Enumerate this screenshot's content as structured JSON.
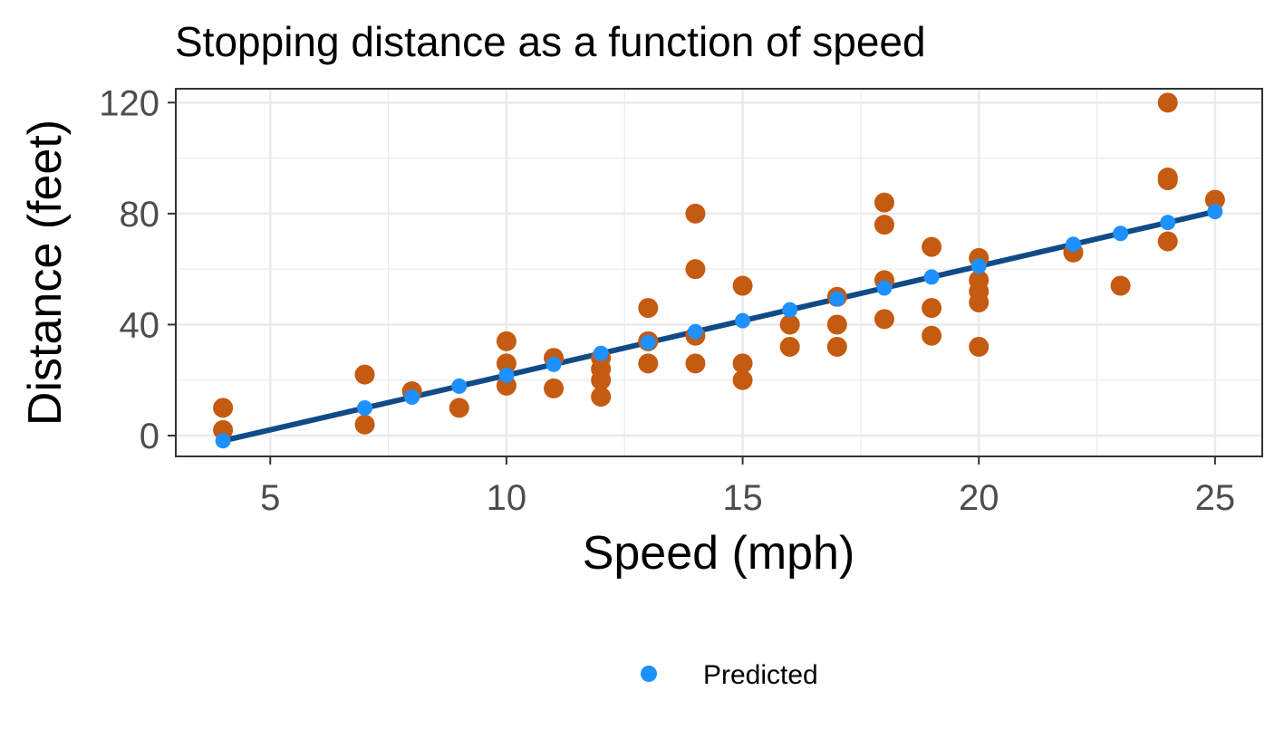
{
  "chart_data": {
    "type": "scatter",
    "title": "Stopping distance as a function of speed",
    "xlabel": "Speed (mph)",
    "ylabel": "Distance (feet)",
    "xlim": [
      3,
      26
    ],
    "ylim": [
      -7.5,
      125
    ],
    "x_ticks": [
      5,
      10,
      15,
      20,
      25
    ],
    "y_ticks": [
      0,
      40,
      80,
      120
    ],
    "grid": true,
    "legend_position": "bottom",
    "colors": {
      "observed": "#C55A11",
      "predicted": "#1E90FF",
      "fit_line": "#114B87",
      "grid": "#EBEBEB",
      "panel_border": "#333333"
    },
    "series": [
      {
        "kind": "observed",
        "points": [
          [
            4,
            2
          ],
          [
            4,
            10
          ],
          [
            7,
            4
          ],
          [
            7,
            22
          ],
          [
            8,
            16
          ],
          [
            9,
            10
          ],
          [
            10,
            18
          ],
          [
            10,
            26
          ],
          [
            10,
            34
          ],
          [
            11,
            17
          ],
          [
            11,
            28
          ],
          [
            12,
            14
          ],
          [
            12,
            20
          ],
          [
            12,
            24
          ],
          [
            12,
            28
          ],
          [
            13,
            26
          ],
          [
            13,
            34
          ],
          [
            13,
            34
          ],
          [
            13,
            46
          ],
          [
            14,
            26
          ],
          [
            14,
            36
          ],
          [
            14,
            60
          ],
          [
            14,
            80
          ],
          [
            15,
            20
          ],
          [
            15,
            26
          ],
          [
            15,
            54
          ],
          [
            16,
            32
          ],
          [
            16,
            40
          ],
          [
            17,
            32
          ],
          [
            17,
            40
          ],
          [
            17,
            50
          ],
          [
            18,
            42
          ],
          [
            18,
            56
          ],
          [
            18,
            76
          ],
          [
            18,
            84
          ],
          [
            19,
            36
          ],
          [
            19,
            46
          ],
          [
            19,
            68
          ],
          [
            20,
            32
          ],
          [
            20,
            48
          ],
          [
            20,
            52
          ],
          [
            20,
            56
          ],
          [
            20,
            64
          ],
          [
            22,
            66
          ],
          [
            23,
            54
          ],
          [
            24,
            70
          ],
          [
            24,
            92
          ],
          [
            24,
            93
          ],
          [
            24,
            120
          ],
          [
            25,
            85
          ]
        ]
      },
      {
        "name": "Predicted",
        "kind": "predicted",
        "points": [
          [
            4,
            -1.85
          ],
          [
            7,
            9.95
          ],
          [
            8,
            13.88
          ],
          [
            9,
            17.82
          ],
          [
            10,
            21.74
          ],
          [
            11,
            25.68
          ],
          [
            12,
            29.61
          ],
          [
            13,
            33.54
          ],
          [
            14,
            37.47
          ],
          [
            15,
            41.41
          ],
          [
            16,
            45.34
          ],
          [
            17,
            49.27
          ],
          [
            18,
            53.2
          ],
          [
            19,
            57.14
          ],
          [
            20,
            61.07
          ],
          [
            22,
            68.93
          ],
          [
            23,
            72.87
          ],
          [
            24,
            76.8
          ],
          [
            25,
            80.73
          ]
        ]
      }
    ]
  }
}
